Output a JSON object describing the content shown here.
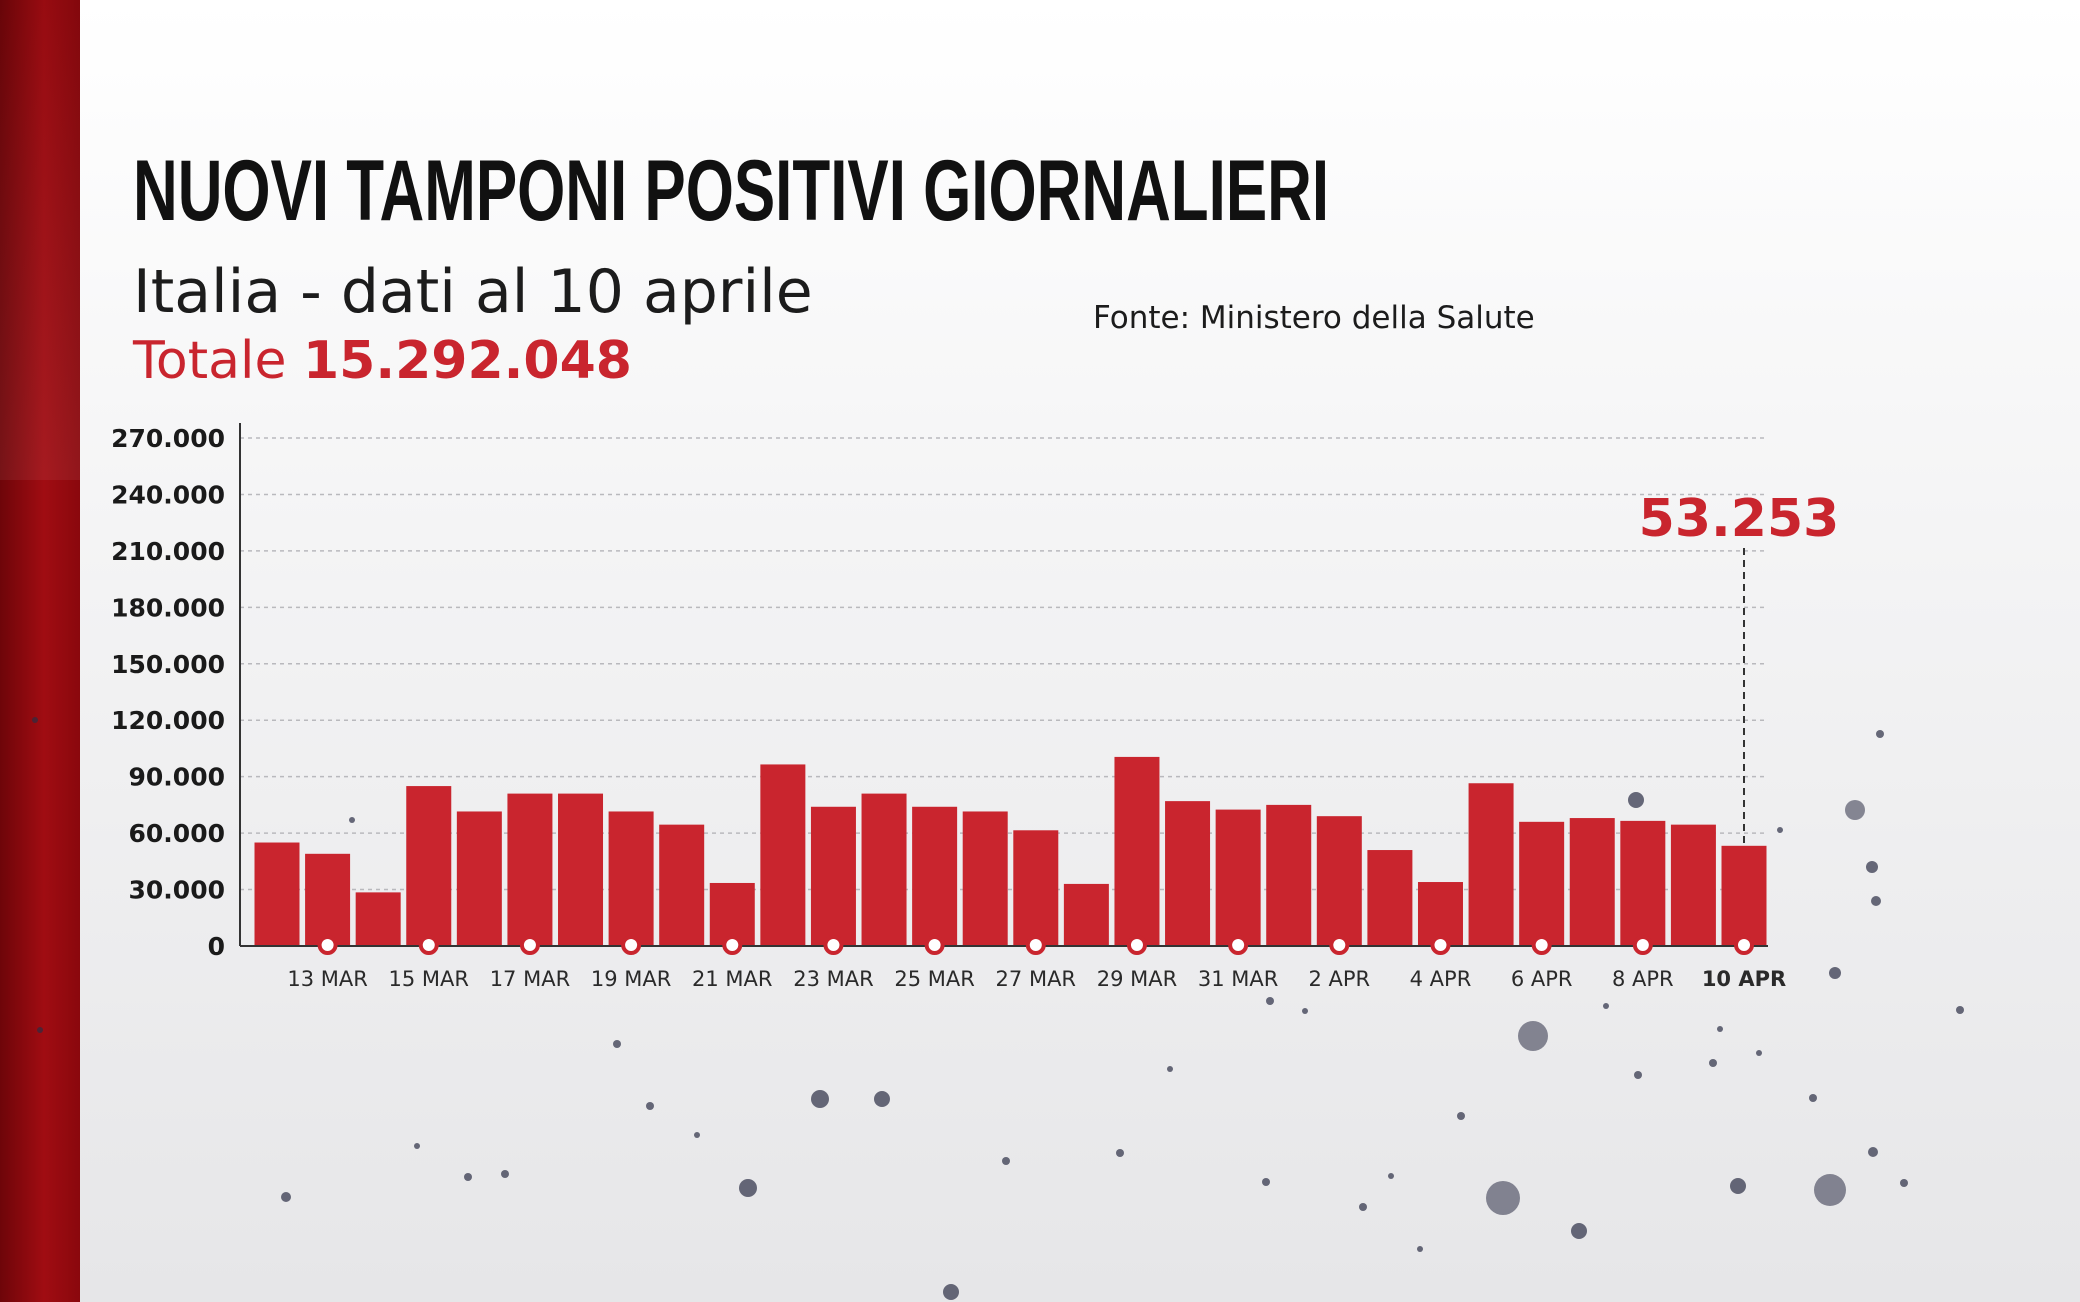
{
  "title": "NUOVI TAMPONI POSITIVI GIORNALIERI",
  "subtitle": "Italia - dati al 10 aprile",
  "total_label": "Totale",
  "total_value": "15.292.048",
  "source": "Fonte: Ministero della Salute",
  "colors": {
    "accent": "#c9252e",
    "side_band": "#a00c12",
    "text": "#111111"
  },
  "chart_data": {
    "type": "bar",
    "title": "NUOVI TAMPONI POSITIVI GIORNALIERI",
    "xlabel": "",
    "ylabel": "",
    "ylim": [
      0,
      270000
    ],
    "grid": true,
    "y_ticks": [
      0,
      30000,
      60000,
      90000,
      120000,
      150000,
      180000,
      210000,
      240000,
      270000
    ],
    "y_tick_labels": [
      "0",
      "30.000",
      "60.000",
      "90.000",
      "120.000",
      "150.000",
      "180.000",
      "210.000",
      "240.000",
      "270.000"
    ],
    "categories": [
      "12 MAR",
      "13 MAR",
      "14 MAR",
      "15 MAR",
      "16 MAR",
      "17 MAR",
      "18 MAR",
      "19 MAR",
      "20 MAR",
      "21 MAR",
      "22 MAR",
      "23 MAR",
      "24 MAR",
      "25 MAR",
      "26 MAR",
      "27 MAR",
      "28 MAR",
      "29 MAR",
      "30 MAR",
      "31 MAR",
      "1 APR",
      "2 APR",
      "3 APR",
      "4 APR",
      "5 APR",
      "6 APR",
      "7 APR",
      "8 APR",
      "9 APR",
      "10 APR"
    ],
    "values": [
      55000,
      49000,
      28500,
      85000,
      71500,
      81000,
      81000,
      71500,
      64500,
      33500,
      96500,
      74000,
      81000,
      74000,
      71500,
      61500,
      33000,
      100500,
      77000,
      72500,
      75000,
      69000,
      51000,
      34000,
      86500,
      66000,
      68000,
      66500,
      64500,
      53253
    ],
    "labeled_ticks": [
      "13 MAR",
      "15 MAR",
      "17 MAR",
      "19 MAR",
      "21 MAR",
      "23 MAR",
      "25 MAR",
      "27 MAR",
      "29 MAR",
      "31 MAR",
      "2 APR",
      "4 APR",
      "6 APR",
      "8 APR",
      "10 APR"
    ],
    "highlight": {
      "category": "10 APR",
      "label": "53.253"
    }
  }
}
